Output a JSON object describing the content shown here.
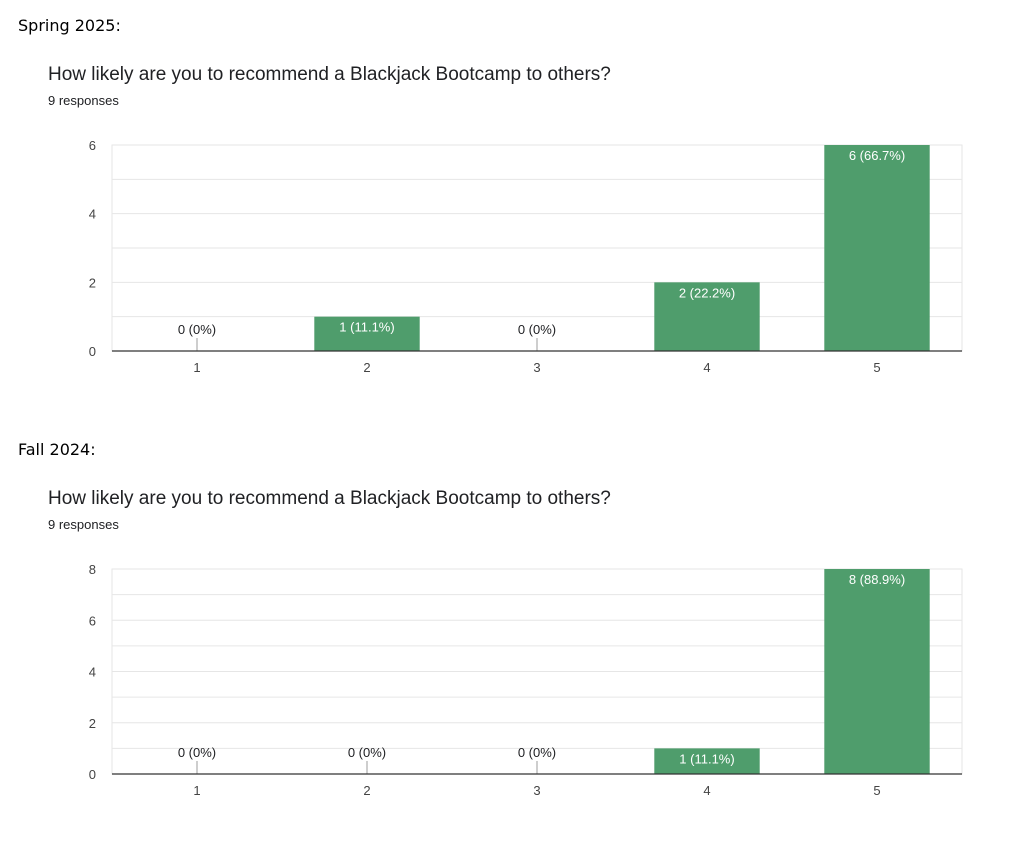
{
  "charts": [
    {
      "section_label": "Spring 2025:",
      "question": "How likely are you to recommend a Blackjack Bootcamp to others?",
      "responses": "9 responses"
    },
    {
      "section_label": "Fall 2024:",
      "question": "How likely are you to recommend a Blackjack Bootcamp to others?",
      "responses": "9 responses"
    }
  ],
  "colors": {
    "bar": "#4f9d6c",
    "grid": "#e6e6e6",
    "axis": "#333333"
  },
  "chart_data": [
    {
      "type": "bar",
      "title": "How likely are you to recommend a Blackjack Bootcamp to others?",
      "categories": [
        "1",
        "2",
        "3",
        "4",
        "5"
      ],
      "values": [
        0,
        1,
        0,
        2,
        6
      ],
      "data_labels": [
        "0 (0%)",
        "1 (11.1%)",
        "0 (0%)",
        "2 (22.2%)",
        "6 (66.7%)"
      ],
      "yticks": [
        0,
        2,
        4,
        6
      ],
      "ylim": [
        0,
        6
      ],
      "grid": true
    },
    {
      "type": "bar",
      "title": "How likely are you to recommend a Blackjack Bootcamp to others?",
      "categories": [
        "1",
        "2",
        "3",
        "4",
        "5"
      ],
      "values": [
        0,
        0,
        0,
        1,
        8
      ],
      "data_labels": [
        "0 (0%)",
        "0 (0%)",
        "0 (0%)",
        "1 (11.1%)",
        "8 (88.9%)"
      ],
      "yticks": [
        0,
        2,
        4,
        6,
        8
      ],
      "ylim": [
        0,
        8
      ],
      "grid": true
    }
  ]
}
